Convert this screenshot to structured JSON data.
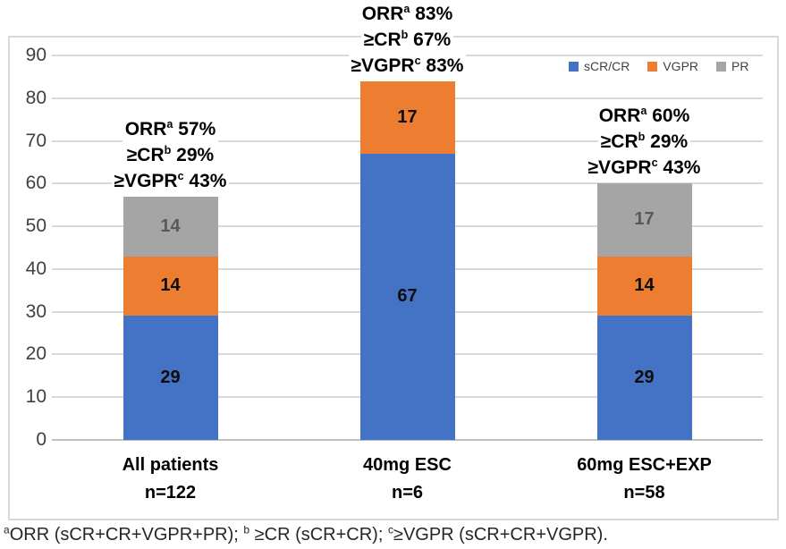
{
  "chart_data": {
    "type": "bar",
    "stacked": true,
    "title": "",
    "xlabel": "",
    "ylabel": "",
    "grid": true,
    "legend_position": "top-right",
    "y_axis": {
      "min": 0,
      "max": 90,
      "step": 10,
      "ticks": [
        0,
        10,
        20,
        30,
        40,
        50,
        60,
        70,
        80,
        90
      ]
    },
    "categories": [
      {
        "label": "All patients",
        "n": "n=122"
      },
      {
        "label": "40mg ESC",
        "n": "n=6"
      },
      {
        "label": "60mg ESC+EXP",
        "n": "n=58"
      }
    ],
    "series": [
      {
        "name": "sCR/CR",
        "color": "#4472C4",
        "label_color": "#0d0d0d",
        "values": [
          29,
          67,
          29
        ]
      },
      {
        "name": "VGPR",
        "color": "#ED7D31",
        "label_color": "#0d0d0d",
        "values": [
          14,
          17,
          14
        ]
      },
      {
        "name": "PR",
        "color": "#A5A5A5",
        "label_color": "#595959",
        "values": [
          14,
          0,
          17
        ]
      }
    ],
    "annotations": [
      {
        "lines": [
          [
            {
              "t": "ORR"
            },
            {
              "sup": "a"
            },
            {
              "t": " 57%"
            }
          ],
          [
            {
              "t": "≥CR"
            },
            {
              "sup": "b"
            },
            {
              "t": " 29%"
            }
          ],
          [
            {
              "t": "≥VGPR"
            },
            {
              "sup": "c"
            },
            {
              "t": " 43%"
            }
          ]
        ]
      },
      {
        "lines": [
          [
            {
              "t": "ORR"
            },
            {
              "sup": "a"
            },
            {
              "t": " 83%"
            }
          ],
          [
            {
              "t": "≥CR"
            },
            {
              "sup": "b"
            },
            {
              "t": " 67%"
            }
          ],
          [
            {
              "t": "≥VGPR"
            },
            {
              "sup": "c"
            },
            {
              "t": " 83%"
            }
          ]
        ]
      },
      {
        "lines": [
          [
            {
              "t": "ORR"
            },
            {
              "sup": "a"
            },
            {
              "t": " 60%"
            }
          ],
          [
            {
              "t": "≥CR"
            },
            {
              "sup": "b"
            },
            {
              "t": " 29%"
            }
          ],
          [
            {
              "t": "≥VGPR"
            },
            {
              "sup": "c"
            },
            {
              "t": " 43%"
            }
          ]
        ]
      }
    ],
    "footnote_parts": [
      {
        "sup": "a"
      },
      {
        "t": "ORR (sCR+CR+VGPR+PR); "
      },
      {
        "sup": "b"
      },
      {
        "t": " ≥CR (sCR+CR); "
      },
      {
        "sup": "c"
      },
      {
        "t": "≥VGPR (sCR+CR+VGPR)."
      }
    ]
  },
  "colors": {
    "blue": "#4472C4",
    "orange": "#ED7D31",
    "gray": "#A5A5A5",
    "gridline": "#D9D9D9",
    "axis_line": "#BFBFBF",
    "chart_border": "#D9D9D9",
    "axis_text": "#404040",
    "legend_text": "#404040"
  }
}
